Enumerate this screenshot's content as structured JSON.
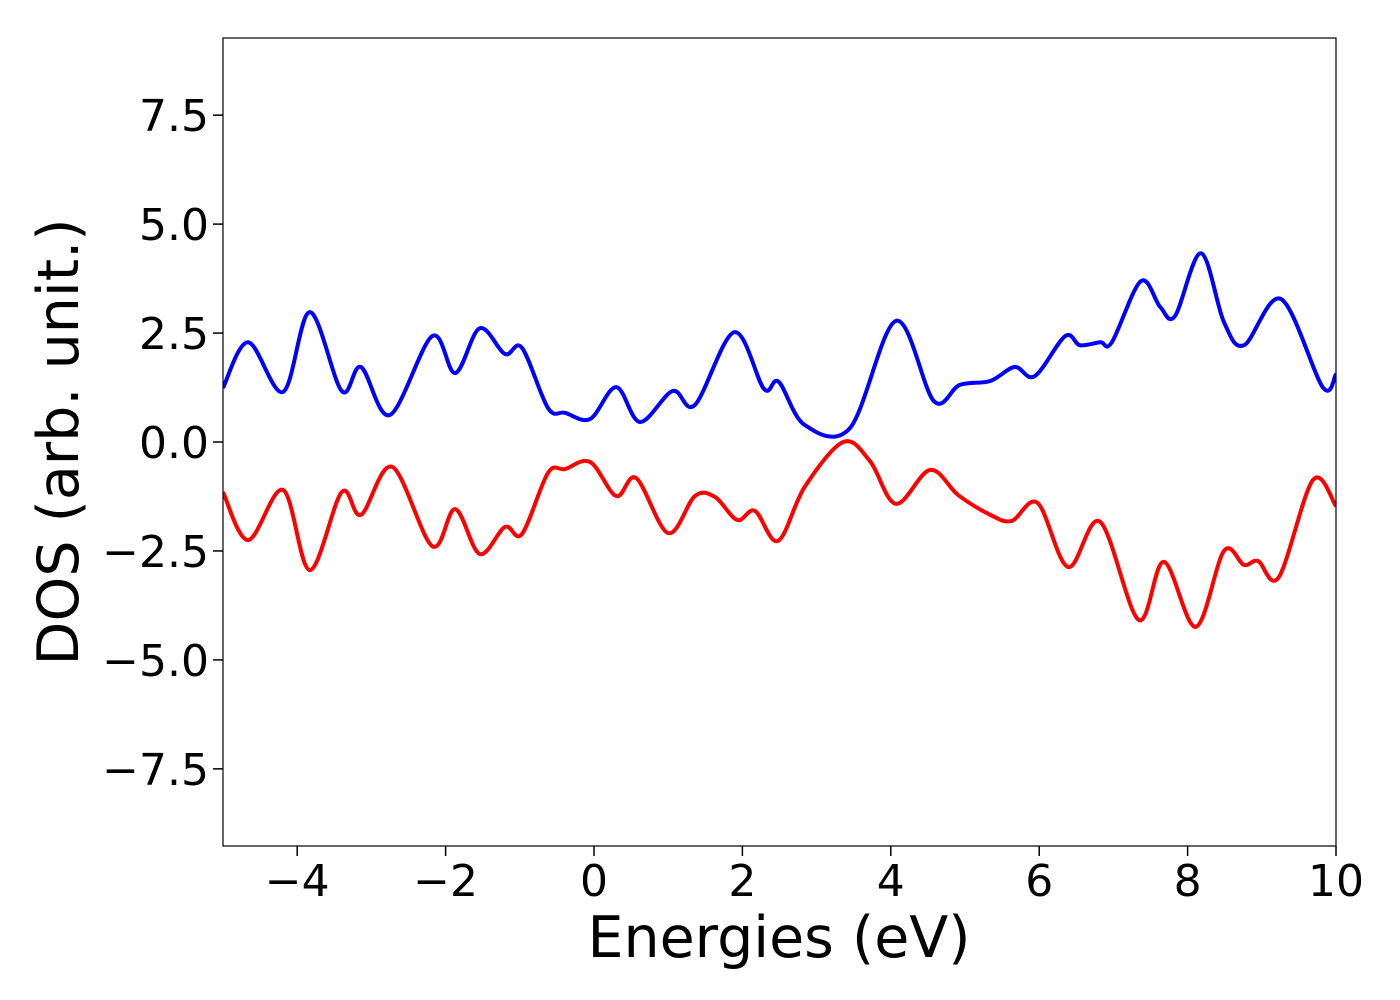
{
  "chart_data": {
    "type": "line",
    "xlabel": "Energies (eV)",
    "ylabel": "DOS (arb. unit.)",
    "xlim": [
      -5,
      10
    ],
    "ylim": [
      -9.27,
      9.27
    ],
    "xticks": [
      {
        "value": -4,
        "label": "−4"
      },
      {
        "value": -2,
        "label": "−2"
      },
      0,
      2,
      4,
      6,
      8,
      10
    ],
    "yticks": [
      {
        "value": -7.5,
        "label": "−7.5"
      },
      {
        "value": -5,
        "label": "−5.0"
      },
      {
        "value": -2.5,
        "label": "−2.5"
      },
      {
        "value": 0,
        "label": "0.0"
      },
      2.5,
      {
        "value": 5,
        "label": "5.0"
      },
      7.5
    ],
    "series": [
      {
        "color": "#0000ff",
        "x": [
          -5,
          -4.66,
          -4.19,
          -3.83,
          -3.4,
          -3.14,
          -2.75,
          -2.18,
          -1.87,
          -1.54,
          -1.2,
          -0.97,
          -0.62,
          -0.39,
          -0.05,
          0.3,
          0.62,
          1.06,
          1.36,
          1.89,
          2.29,
          2.49,
          2.84,
          3.45,
          4.07,
          4.58,
          4.93,
          5.34,
          5.67,
          5.94,
          6.35,
          6.55,
          6.82,
          6.98,
          7.37,
          7.63,
          7.83,
          8.18,
          8.49,
          8.76,
          9.26,
          9.82,
          10
        ],
        "values": [
          1.24,
          2.29,
          1.15,
          2.98,
          1.17,
          1.72,
          0.62,
          2.43,
          1.58,
          2.61,
          2.02,
          2.16,
          0.78,
          0.67,
          0.53,
          1.26,
          0.46,
          1.17,
          0.85,
          2.52,
          1.22,
          1.38,
          0.39,
          0.32,
          2.78,
          0.94,
          1.31,
          1.4,
          1.72,
          1.51,
          2.43,
          2.22,
          2.29,
          2.29,
          3.69,
          3.1,
          2.89,
          4.33,
          2.75,
          2.22,
          3.28,
          1.26,
          1.56
        ]
      },
      {
        "color": "#ff0000",
        "x": [
          -5,
          -4.66,
          -4.19,
          -3.83,
          -3.4,
          -3.14,
          -2.72,
          -2.18,
          -1.87,
          -1.54,
          -1.2,
          -0.97,
          -0.62,
          -0.39,
          -0.05,
          0.3,
          0.57,
          1.0,
          1.36,
          1.63,
          1.93,
          2.17,
          2.48,
          2.84,
          3.36,
          3.72,
          4.07,
          4.53,
          4.91,
          5.34,
          5.63,
          5.98,
          6.39,
          6.82,
          7.34,
          7.68,
          8.11,
          8.49,
          8.76,
          8.95,
          9.23,
          9.69,
          10
        ],
        "values": [
          -1.15,
          -2.25,
          -1.1,
          -2.94,
          -1.15,
          -1.67,
          -0.57,
          -2.39,
          -1.54,
          -2.57,
          -1.95,
          -2.11,
          -0.71,
          -0.62,
          -0.46,
          -1.24,
          -0.83,
          -2.09,
          -1.24,
          -1.26,
          -1.79,
          -1.58,
          -2.27,
          -1.03,
          0,
          -0.44,
          -1.42,
          -0.64,
          -1.22,
          -1.67,
          -1.81,
          -1.4,
          -2.87,
          -1.83,
          -4.08,
          -2.75,
          -4.24,
          -2.5,
          -2.82,
          -2.73,
          -3.1,
          -0.87,
          -1.47
        ]
      }
    ]
  }
}
